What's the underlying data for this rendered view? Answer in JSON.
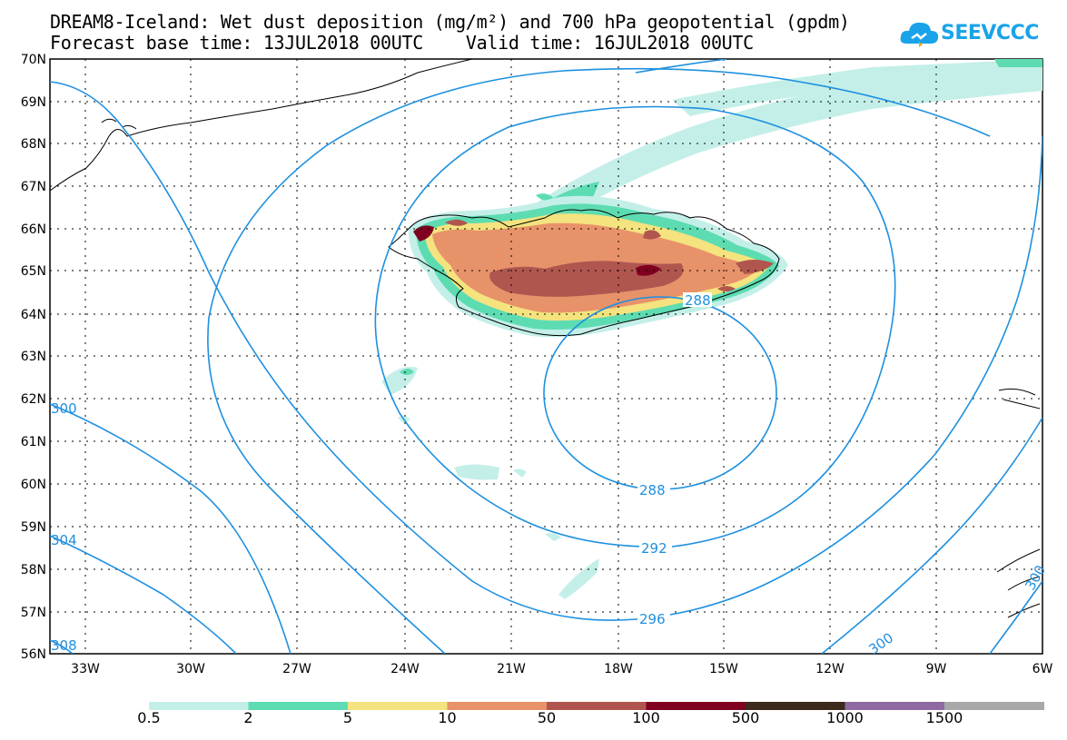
{
  "title_line1": "DREAM8-Iceland: Wet dust deposition (mg/m²) and 700 hPa geopotential (gpdm)",
  "title_line2": "Forecast base time: 13JUL2018 00UTC    Valid time: 16JUL2018 00UTC",
  "logo_text": "SEEVCCC",
  "logo_icon": "cloud-icon",
  "map": {
    "lat_labels": [
      "70N",
      "69N",
      "68N",
      "67N",
      "66N",
      "65N",
      "64N",
      "63N",
      "62N",
      "61N",
      "60N",
      "59N",
      "58N",
      "57N",
      "56N"
    ],
    "lon_labels": [
      "33W",
      "30W",
      "27W",
      "24W",
      "21W",
      "18W",
      "15W",
      "12W",
      "9W",
      "6W"
    ],
    "contour_color": "#1e90e0",
    "contour_labels": [
      "288",
      "288",
      "292",
      "296",
      "300",
      "300",
      "304",
      "308",
      "300"
    ]
  },
  "legend": {
    "colors": [
      "#c4efe9",
      "#5ddcb2",
      "#f4e37e",
      "#e8926a",
      "#b0564f",
      "#800020",
      "#3c2a1c",
      "#8e6aa0",
      "#a8a8a8"
    ],
    "labels": [
      "0.5",
      "2",
      "5",
      "10",
      "50",
      "100",
      "500",
      "1000",
      "1500"
    ]
  }
}
